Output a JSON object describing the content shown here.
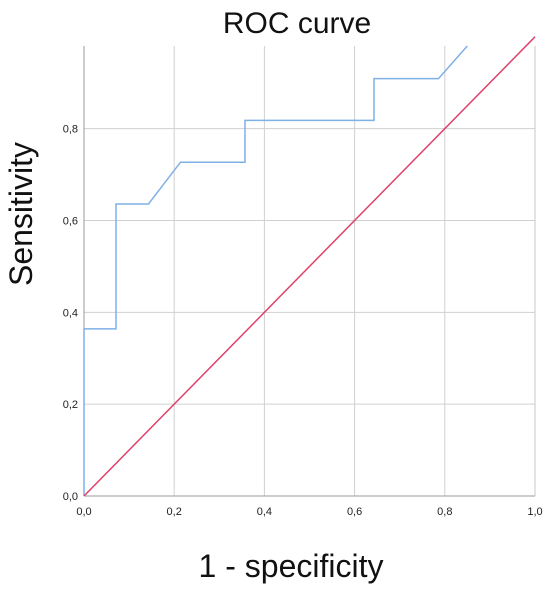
{
  "chart_data": {
    "type": "line",
    "title": "ROC curve",
    "xlabel": "1 - specificity",
    "ylabel": "Sensitivity",
    "xlim": [
      0,
      1
    ],
    "ylim": [
      0,
      0.98
    ],
    "x_ticks": [
      "0,0",
      "0,2",
      "0,4",
      "0,6",
      "0,8",
      "1,0"
    ],
    "y_ticks": [
      "0,0",
      "0,2",
      "0,4",
      "0,6",
      "0,8"
    ],
    "x_tick_values": [
      0,
      0.2,
      0.4,
      0.6,
      0.8,
      1.0
    ],
    "y_tick_values": [
      0,
      0.2,
      0.4,
      0.6,
      0.8
    ],
    "grid": true,
    "series": [
      {
        "color": "#7fb0e6",
        "x": [
          0,
          0,
          0.071,
          0.071,
          0.143,
          0.214,
          0.357,
          0.357,
          0.643,
          0.643,
          0.786,
          0.85
        ],
        "y": [
          0,
          0.364,
          0.364,
          0.636,
          0.636,
          0.727,
          0.727,
          0.818,
          0.818,
          0.909,
          0.909,
          0.98
        ]
      },
      {
        "color": "#e0406a",
        "x": [
          0,
          1
        ],
        "y": [
          0,
          1
        ]
      }
    ]
  }
}
